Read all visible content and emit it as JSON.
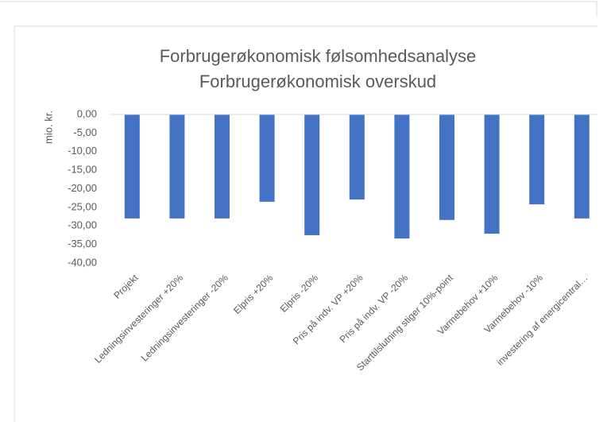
{
  "chart_data": {
    "type": "bar",
    "title": "Forbrugerøkonomisk følsomhedsanalyse",
    "subtitle": "Forbrugerøkonomisk overskud",
    "y_label": "mio. kr.",
    "categories": [
      "Projekt",
      "Ledningsinvesteringer +20%",
      "Ledningsinvesteringer -20%",
      "Elpris +20%",
      "Elpris -20%",
      "Pris på indv. VP +20%",
      "Pris på indv. VP -20%",
      "Starttilslutning stiger 10%-point",
      "Varmebehov +10%",
      "Varmebehov -10%",
      "investering af energicentral…"
    ],
    "values": [
      -28.0,
      -28.0,
      -28.0,
      -23.5,
      -32.5,
      -22.9,
      -33.4,
      -28.4,
      -32.1,
      -24.2,
      -28.0
    ],
    "color": "#4472c4",
    "ylim": [
      -40,
      0
    ],
    "yticks": [
      {
        "value": 0,
        "label": "0,00"
      },
      {
        "value": -5,
        "label": "-5,00"
      },
      {
        "value": -10,
        "label": "-10,00"
      },
      {
        "value": -15,
        "label": "-15,00"
      },
      {
        "value": -20,
        "label": "-20,00"
      },
      {
        "value": -25,
        "label": "-25,00"
      },
      {
        "value": -30,
        "label": "-30,00"
      },
      {
        "value": -35,
        "label": "-35,00"
      },
      {
        "value": -40,
        "label": "-40,00"
      }
    ],
    "grid": false
  }
}
